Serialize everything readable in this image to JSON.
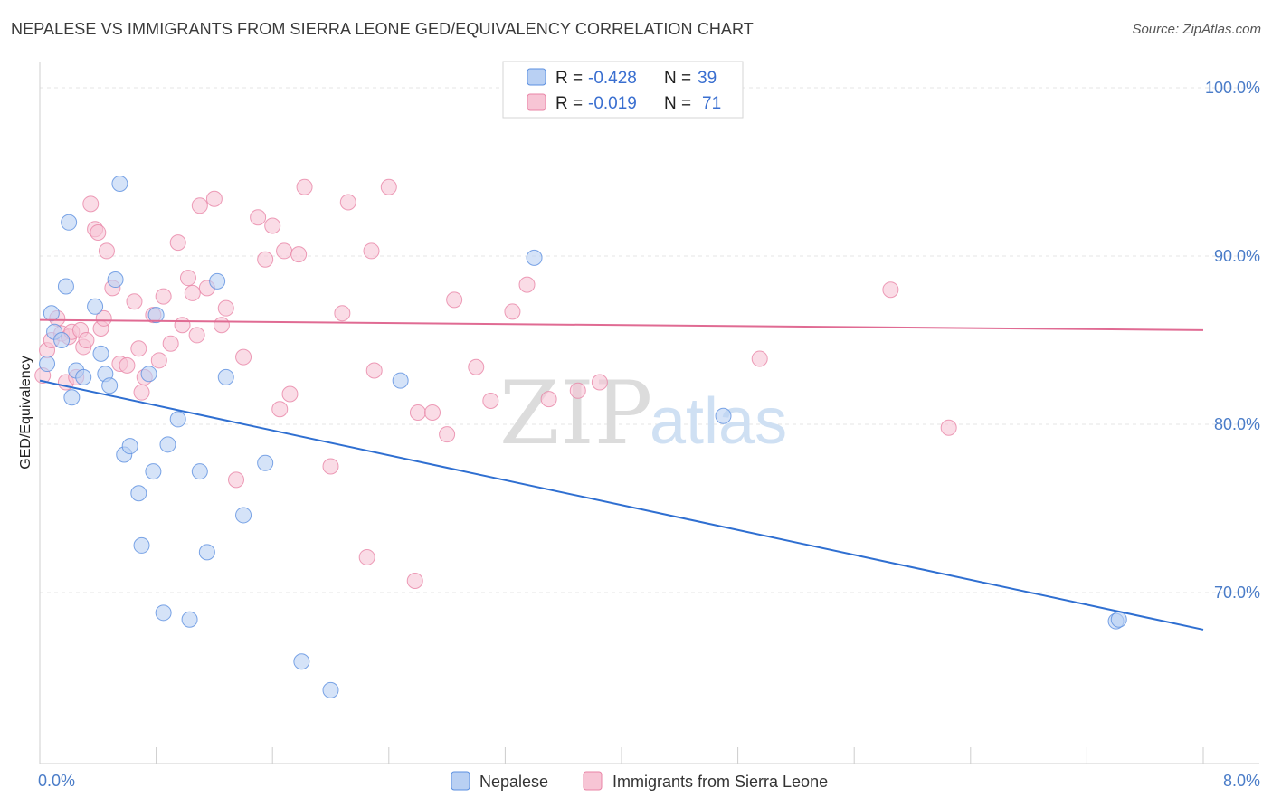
{
  "title": "NEPALESE VS IMMIGRANTS FROM SIERRA LEONE GED/EQUIVALENCY CORRELATION CHART",
  "source": "Source: ZipAtlas.com",
  "watermark": {
    "zip": "ZIP",
    "atlas": "atlas"
  },
  "colors": {
    "nepalese": "#5b8fe0",
    "nepalese_fill": "#b9d0f3",
    "sierra": "#e984a6",
    "sierra_fill": "#f7c5d5",
    "tick": "#4a7cc8",
    "grid": "#e6e6e6"
  },
  "legend": {
    "rows": [
      {
        "r_label": "R = ",
        "r_value": "-0.428",
        "n_label": "N = ",
        "n_value": "39"
      },
      {
        "r_label": "R = ",
        "r_value": "-0.019",
        "n_label": "N = ",
        "n_value": "71"
      }
    ]
  },
  "chart_data": {
    "type": "scatter",
    "xlabel": "",
    "ylabel": "GED/Equivalency",
    "xlim": [
      0,
      8
    ],
    "ylim": [
      62,
      102
    ],
    "x_tick_labels": [
      {
        "value": 0,
        "label": "0.0%"
      },
      {
        "value": 8,
        "label": "8.0%"
      }
    ],
    "y_tick_labels": [
      {
        "value": 100,
        "label": "100.0%"
      },
      {
        "value": 90,
        "label": "90.0%"
      },
      {
        "value": 80,
        "label": "80.0%"
      },
      {
        "value": 70,
        "label": "70.0%"
      }
    ],
    "grid": true,
    "legend_position": "top-center",
    "series": [
      {
        "name": "Nepalese",
        "trend": {
          "x": [
            0.0,
            8.0
          ],
          "y": [
            82.6,
            67.8
          ]
        },
        "points": [
          [
            0.05,
            83.6
          ],
          [
            0.08,
            86.6
          ],
          [
            0.1,
            85.5
          ],
          [
            0.15,
            85.0
          ],
          [
            0.18,
            88.2
          ],
          [
            0.2,
            92.0
          ],
          [
            0.22,
            81.6
          ],
          [
            0.25,
            83.2
          ],
          [
            0.3,
            82.8
          ],
          [
            0.38,
            87.0
          ],
          [
            0.42,
            84.2
          ],
          [
            0.45,
            83.0
          ],
          [
            0.48,
            82.3
          ],
          [
            0.52,
            88.6
          ],
          [
            0.55,
            94.3
          ],
          [
            0.58,
            78.2
          ],
          [
            0.62,
            78.7
          ],
          [
            0.68,
            75.9
          ],
          [
            0.7,
            72.8
          ],
          [
            0.75,
            83.0
          ],
          [
            0.78,
            77.2
          ],
          [
            0.8,
            86.5
          ],
          [
            0.85,
            68.8
          ],
          [
            0.88,
            78.8
          ],
          [
            0.95,
            80.3
          ],
          [
            1.03,
            68.4
          ],
          [
            1.1,
            77.2
          ],
          [
            1.15,
            72.4
          ],
          [
            1.22,
            88.5
          ],
          [
            1.28,
            82.8
          ],
          [
            1.4,
            74.6
          ],
          [
            1.55,
            77.7
          ],
          [
            1.8,
            65.9
          ],
          [
            2.0,
            64.2
          ],
          [
            2.48,
            82.6
          ],
          [
            3.4,
            89.9
          ],
          [
            4.7,
            80.5
          ],
          [
            7.4,
            68.3
          ],
          [
            7.42,
            68.4
          ]
        ]
      },
      {
        "name": "Immigrants from Sierra Leone",
        "trend": {
          "x": [
            0.0,
            8.0
          ],
          "y": [
            86.2,
            85.6
          ]
        },
        "points": [
          [
            0.02,
            82.9
          ],
          [
            0.05,
            84.4
          ],
          [
            0.08,
            85.0
          ],
          [
            0.12,
            86.3
          ],
          [
            0.15,
            85.4
          ],
          [
            0.18,
            82.5
          ],
          [
            0.2,
            85.2
          ],
          [
            0.22,
            85.5
          ],
          [
            0.25,
            82.8
          ],
          [
            0.28,
            85.6
          ],
          [
            0.3,
            84.6
          ],
          [
            0.32,
            85.0
          ],
          [
            0.35,
            93.1
          ],
          [
            0.38,
            91.6
          ],
          [
            0.4,
            91.4
          ],
          [
            0.42,
            85.7
          ],
          [
            0.44,
            86.3
          ],
          [
            0.46,
            90.3
          ],
          [
            0.5,
            88.1
          ],
          [
            0.55,
            83.6
          ],
          [
            0.6,
            83.5
          ],
          [
            0.65,
            87.3
          ],
          [
            0.68,
            84.5
          ],
          [
            0.7,
            81.9
          ],
          [
            0.72,
            82.8
          ],
          [
            0.78,
            86.5
          ],
          [
            0.82,
            83.8
          ],
          [
            0.85,
            87.6
          ],
          [
            0.9,
            84.8
          ],
          [
            0.95,
            90.8
          ],
          [
            0.98,
            85.9
          ],
          [
            1.02,
            88.7
          ],
          [
            1.05,
            87.8
          ],
          [
            1.08,
            85.3
          ],
          [
            1.1,
            93.0
          ],
          [
            1.15,
            88.1
          ],
          [
            1.2,
            93.4
          ],
          [
            1.25,
            85.9
          ],
          [
            1.28,
            86.9
          ],
          [
            1.35,
            76.7
          ],
          [
            1.4,
            84.0
          ],
          [
            1.5,
            92.3
          ],
          [
            1.55,
            89.8
          ],
          [
            1.6,
            91.8
          ],
          [
            1.65,
            80.9
          ],
          [
            1.68,
            90.3
          ],
          [
            1.72,
            81.8
          ],
          [
            1.78,
            90.1
          ],
          [
            1.82,
            94.1
          ],
          [
            2.0,
            77.5
          ],
          [
            2.08,
            86.6
          ],
          [
            2.12,
            93.2
          ],
          [
            2.25,
            72.1
          ],
          [
            2.28,
            90.3
          ],
          [
            2.3,
            83.2
          ],
          [
            2.4,
            94.1
          ],
          [
            2.58,
            70.7
          ],
          [
            2.6,
            80.7
          ],
          [
            2.7,
            80.7
          ],
          [
            2.8,
            79.4
          ],
          [
            2.85,
            87.4
          ],
          [
            3.0,
            83.4
          ],
          [
            3.1,
            81.4
          ],
          [
            3.25,
            86.7
          ],
          [
            3.35,
            88.3
          ],
          [
            3.5,
            81.5
          ],
          [
            3.7,
            82.0
          ],
          [
            3.85,
            82.5
          ],
          [
            4.95,
            83.9
          ],
          [
            5.85,
            88.0
          ],
          [
            6.25,
            79.8
          ]
        ]
      }
    ]
  }
}
